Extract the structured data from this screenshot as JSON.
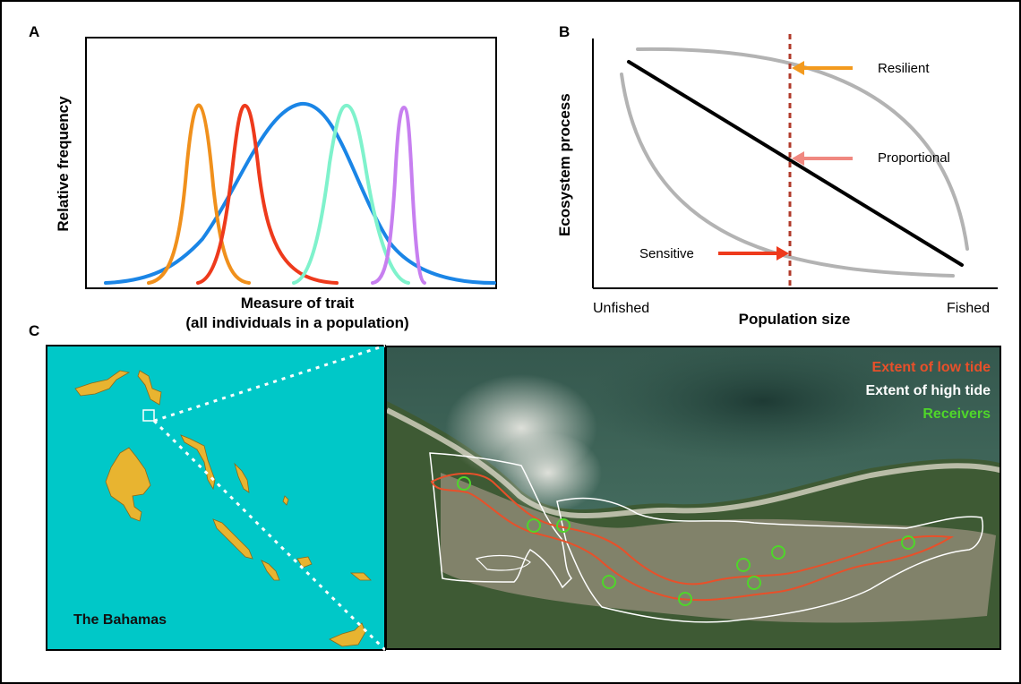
{
  "panels": {
    "a": {
      "letter": "A",
      "ylabel": "Relative frequency",
      "xlabel_line1": "Measure of trait",
      "xlabel_line2": "(all individuals in a population)",
      "colors": {
        "population": "#1a85e6",
        "orange": "#f0901c",
        "red": "#ee3a1c",
        "aqua": "#7ff2cc",
        "violet": "#c77ff0"
      }
    },
    "b": {
      "letter": "B",
      "ylabel": "Ecosystem process",
      "xlabel": "Population size",
      "x_tick_left": "Unfished",
      "x_tick_right": "Fished",
      "annotations": {
        "resilient": "Resilient",
        "proportional": "Proportional",
        "sensitive": "Sensitive"
      },
      "colors": {
        "resilient_arrow": "#f39a1e",
        "proportional_arrow": "#f08880",
        "sensitive_arrow": "#ee3a1c",
        "dashed_line": "#b03a2a",
        "curves": "#b3b3b3",
        "linear": "#000000"
      }
    },
    "c": {
      "letter": "C",
      "map_label": "The Bahamas",
      "legend": {
        "low_tide": "Extent of low tide",
        "high_tide": "Extent of high tide",
        "receivers": "Receivers"
      },
      "colors": {
        "sea": "#00c8c8",
        "land": "#e8b430",
        "low_tide": "#e8502a",
        "high_tide": "#ffffff",
        "receivers": "#4fd62a"
      }
    }
  }
}
